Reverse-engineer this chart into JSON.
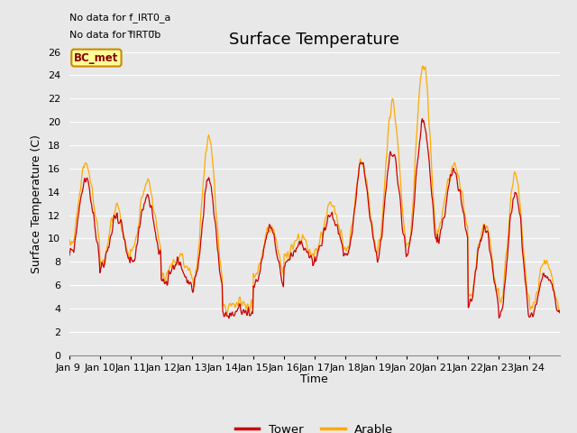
{
  "title": "Surface Temperature",
  "xlabel": "Time",
  "ylabel": "Surface Temperature (C)",
  "ylim": [
    0,
    26
  ],
  "yticks": [
    0,
    2,
    4,
    6,
    8,
    10,
    12,
    14,
    16,
    18,
    20,
    22,
    24,
    26
  ],
  "xtick_labels": [
    "Jan 9 ",
    "Jan 10",
    "Jan 11",
    "Jan 12",
    "Jan 13",
    "Jan 14",
    "Jan 15",
    "Jan 16",
    "Jan 17",
    "Jan 18",
    "Jan 19",
    "Jan 20",
    "Jan 21",
    "Jan 22",
    "Jan 23",
    "Jan 24"
  ],
  "no_data_text1": "No data for f_IRT0_a",
  "no_data_text2": "No data for f̅IRT0̅b",
  "bc_met_label": "BC_met",
  "legend_entries": [
    "Tower",
    "Arable"
  ],
  "tower_color": "#cc0000",
  "arable_color": "#ffaa00",
  "plot_bg_color": "#e8e8e8",
  "fig_bg_color": "#e8e8e8",
  "grid_color": "#ffffff",
  "title_fontsize": 13,
  "label_fontsize": 9,
  "tick_fontsize": 8
}
